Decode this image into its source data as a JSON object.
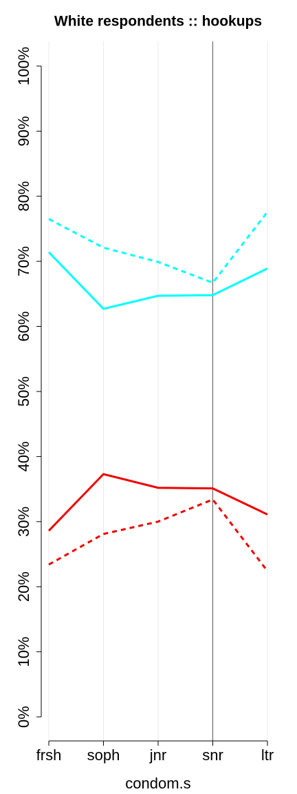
{
  "chart_data": {
    "type": "line",
    "title": "White respondents :: hookups",
    "x_label": "condom.s",
    "categories": [
      "frsh",
      "soph",
      "jnr",
      "snr",
      "ltr"
    ],
    "series": [
      {
        "color": "#00ffff",
        "dashed": false,
        "values": [
          71.4,
          62.7,
          64.7,
          64.8,
          68.9
        ]
      },
      {
        "color": "#00ffff",
        "dashed": true,
        "values": [
          76.5,
          72.1,
          69.9,
          66.7,
          77.6
        ]
      },
      {
        "color": "#ee0000",
        "dashed": false,
        "values": [
          28.6,
          37.3,
          35.2,
          35.1,
          31.1
        ]
      },
      {
        "color": "#ee0000",
        "dashed": true,
        "values": [
          23.4,
          28.1,
          30.0,
          33.4,
          22.4
        ]
      }
    ],
    "ylim": [
      -3.7,
      103.8
    ],
    "yticks": [
      {
        "value": 0,
        "label": "0%"
      },
      {
        "value": 10,
        "label": "10%"
      },
      {
        "value": 20,
        "label": "20%"
      },
      {
        "value": 30,
        "label": "30%"
      },
      {
        "value": 40,
        "label": "40%"
      },
      {
        "value": 50,
        "label": "50%"
      },
      {
        "value": 60,
        "label": "60%"
      },
      {
        "value": 70,
        "label": "70%"
      },
      {
        "value": 80,
        "label": "80%"
      },
      {
        "value": 90,
        "label": "90%"
      },
      {
        "value": 100,
        "label": "100%"
      }
    ],
    "grid": true,
    "reference_category": "snr"
  }
}
